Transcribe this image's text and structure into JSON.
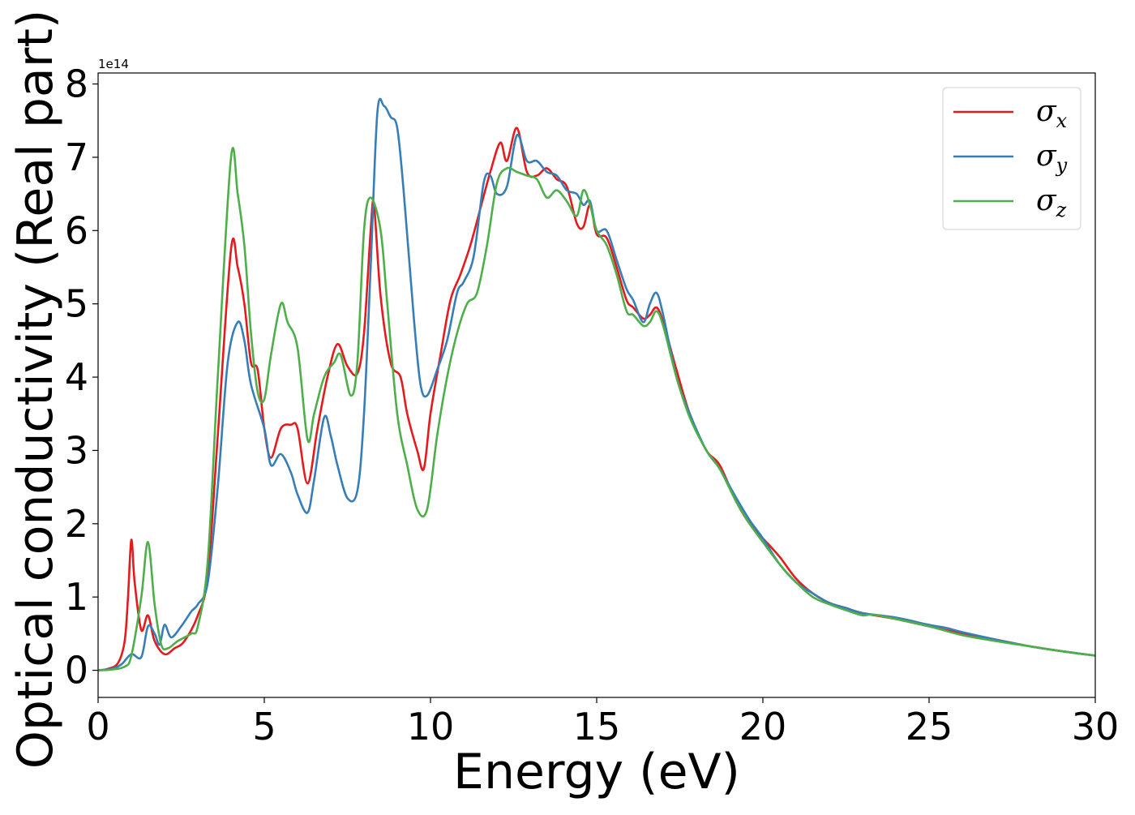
{
  "chart_data": {
    "type": "line",
    "title": "",
    "xlabel": "Energy (eV)",
    "ylabel": "Optical conductivity (Real part)",
    "y_offset_label": "1e14",
    "xlim": [
      0,
      30
    ],
    "ylim": [
      -0.37,
      8.15
    ],
    "xticks": [
      0,
      5,
      10,
      15,
      20,
      25,
      30
    ],
    "yticks": [
      0,
      1,
      2,
      3,
      4,
      5,
      6,
      7,
      8
    ],
    "grid": false,
    "legend_position": "top-right",
    "series": [
      {
        "name": "σx",
        "label_base": "σ",
        "label_sub": "x",
        "color": "#e41a1c",
        "points": [
          [
            0,
            0
          ],
          [
            0.3,
            0.02
          ],
          [
            0.6,
            0.1
          ],
          [
            0.8,
            0.4
          ],
          [
            0.9,
            1.0
          ],
          [
            1.0,
            1.78
          ],
          [
            1.1,
            1.2
          ],
          [
            1.3,
            0.55
          ],
          [
            1.5,
            0.75
          ],
          [
            1.7,
            0.4
          ],
          [
            2.0,
            0.22
          ],
          [
            2.3,
            0.3
          ],
          [
            2.6,
            0.4
          ],
          [
            3.0,
            0.75
          ],
          [
            3.3,
            1.3
          ],
          [
            3.6,
            3.2
          ],
          [
            4.0,
            5.75
          ],
          [
            4.2,
            5.5
          ],
          [
            4.4,
            5.0
          ],
          [
            4.6,
            4.2
          ],
          [
            4.8,
            4.1
          ],
          [
            5.0,
            3.3
          ],
          [
            5.2,
            2.9
          ],
          [
            5.5,
            3.3
          ],
          [
            5.8,
            3.35
          ],
          [
            6.0,
            3.3
          ],
          [
            6.3,
            2.55
          ],
          [
            6.6,
            3.3
          ],
          [
            6.9,
            4.0
          ],
          [
            7.2,
            4.45
          ],
          [
            7.5,
            4.15
          ],
          [
            7.8,
            4.05
          ],
          [
            8.0,
            4.6
          ],
          [
            8.2,
            6.0
          ],
          [
            8.3,
            6.35
          ],
          [
            8.5,
            5.1
          ],
          [
            8.8,
            4.2
          ],
          [
            9.1,
            4.0
          ],
          [
            9.3,
            3.5
          ],
          [
            9.6,
            3.0
          ],
          [
            9.8,
            2.75
          ],
          [
            10.0,
            3.5
          ],
          [
            10.3,
            4.3
          ],
          [
            10.6,
            5.05
          ],
          [
            10.9,
            5.4
          ],
          [
            11.2,
            5.8
          ],
          [
            11.5,
            6.3
          ],
          [
            11.8,
            6.8
          ],
          [
            12.1,
            7.2
          ],
          [
            12.3,
            6.95
          ],
          [
            12.6,
            7.4
          ],
          [
            12.9,
            6.8
          ],
          [
            13.2,
            6.75
          ],
          [
            13.5,
            6.85
          ],
          [
            13.8,
            6.7
          ],
          [
            14.1,
            6.6
          ],
          [
            14.4,
            6.1
          ],
          [
            14.6,
            6.05
          ],
          [
            14.8,
            6.35
          ],
          [
            15.0,
            5.95
          ],
          [
            15.3,
            5.9
          ],
          [
            15.6,
            5.5
          ],
          [
            15.9,
            5.05
          ],
          [
            16.1,
            4.95
          ],
          [
            16.4,
            4.8
          ],
          [
            16.6,
            4.85
          ],
          [
            16.8,
            4.95
          ],
          [
            17.0,
            4.75
          ],
          [
            17.4,
            4.1
          ],
          [
            17.8,
            3.5
          ],
          [
            18.3,
            3.0
          ],
          [
            18.7,
            2.8
          ],
          [
            19.2,
            2.3
          ],
          [
            19.6,
            2.0
          ],
          [
            20.0,
            1.8
          ],
          [
            20.5,
            1.55
          ],
          [
            21.0,
            1.25
          ],
          [
            21.5,
            1.05
          ],
          [
            22.0,
            0.92
          ],
          [
            22.5,
            0.85
          ],
          [
            23.0,
            0.78
          ],
          [
            24.0,
            0.7
          ],
          [
            25.0,
            0.6
          ],
          [
            26.0,
            0.5
          ],
          [
            27.0,
            0.42
          ],
          [
            28.0,
            0.33
          ],
          [
            29.0,
            0.26
          ],
          [
            30.0,
            0.2
          ]
        ]
      },
      {
        "name": "σy",
        "label_base": "σ",
        "label_sub": "y",
        "color": "#377eb8",
        "points": [
          [
            0,
            0
          ],
          [
            0.4,
            0.02
          ],
          [
            0.7,
            0.08
          ],
          [
            1.0,
            0.22
          ],
          [
            1.3,
            0.18
          ],
          [
            1.5,
            0.6
          ],
          [
            1.7,
            0.5
          ],
          [
            1.85,
            0.35
          ],
          [
            2.0,
            0.62
          ],
          [
            2.2,
            0.45
          ],
          [
            2.5,
            0.6
          ],
          [
            2.8,
            0.8
          ],
          [
            3.0,
            0.9
          ],
          [
            3.3,
            1.2
          ],
          [
            3.6,
            2.5
          ],
          [
            3.9,
            4.2
          ],
          [
            4.2,
            4.75
          ],
          [
            4.4,
            4.5
          ],
          [
            4.6,
            3.9
          ],
          [
            5.0,
            3.3
          ],
          [
            5.2,
            2.8
          ],
          [
            5.5,
            2.95
          ],
          [
            5.8,
            2.7
          ],
          [
            6.0,
            2.4
          ],
          [
            6.3,
            2.15
          ],
          [
            6.5,
            2.6
          ],
          [
            6.8,
            3.45
          ],
          [
            7.0,
            3.2
          ],
          [
            7.2,
            2.8
          ],
          [
            7.5,
            2.35
          ],
          [
            7.8,
            2.45
          ],
          [
            8.0,
            3.5
          ],
          [
            8.2,
            5.5
          ],
          [
            8.4,
            7.6
          ],
          [
            8.6,
            7.7
          ],
          [
            8.8,
            7.55
          ],
          [
            9.0,
            7.4
          ],
          [
            9.2,
            6.5
          ],
          [
            9.5,
            4.8
          ],
          [
            9.7,
            3.9
          ],
          [
            9.9,
            3.75
          ],
          [
            10.2,
            4.1
          ],
          [
            10.5,
            4.5
          ],
          [
            10.8,
            5.15
          ],
          [
            11.0,
            5.3
          ],
          [
            11.3,
            5.65
          ],
          [
            11.6,
            6.65
          ],
          [
            11.8,
            6.75
          ],
          [
            12.0,
            6.5
          ],
          [
            12.3,
            6.6
          ],
          [
            12.6,
            7.3
          ],
          [
            12.9,
            6.95
          ],
          [
            13.2,
            6.95
          ],
          [
            13.5,
            6.8
          ],
          [
            13.8,
            6.75
          ],
          [
            14.1,
            6.55
          ],
          [
            14.4,
            6.5
          ],
          [
            14.6,
            6.35
          ],
          [
            14.8,
            6.4
          ],
          [
            15.0,
            6.0
          ],
          [
            15.3,
            6.0
          ],
          [
            15.6,
            5.6
          ],
          [
            15.9,
            5.2
          ],
          [
            16.1,
            5.05
          ],
          [
            16.4,
            4.75
          ],
          [
            16.6,
            5.0
          ],
          [
            16.8,
            5.15
          ],
          [
            17.0,
            4.85
          ],
          [
            17.4,
            4.0
          ],
          [
            17.8,
            3.5
          ],
          [
            18.3,
            3.0
          ],
          [
            18.7,
            2.75
          ],
          [
            19.2,
            2.35
          ],
          [
            19.6,
            2.05
          ],
          [
            20.0,
            1.8
          ],
          [
            20.5,
            1.45
          ],
          [
            21.0,
            1.2
          ],
          [
            21.5,
            1.05
          ],
          [
            22.0,
            0.92
          ],
          [
            22.5,
            0.85
          ],
          [
            23.0,
            0.78
          ],
          [
            24.0,
            0.72
          ],
          [
            25.0,
            0.62
          ],
          [
            25.5,
            0.58
          ],
          [
            26.0,
            0.52
          ],
          [
            27.0,
            0.42
          ],
          [
            28.0,
            0.33
          ],
          [
            29.0,
            0.26
          ],
          [
            30.0,
            0.2
          ]
        ]
      },
      {
        "name": "σz",
        "label_base": "σ",
        "label_sub": "z",
        "color": "#4daf4a",
        "points": [
          [
            0,
            0
          ],
          [
            0.4,
            0.01
          ],
          [
            0.8,
            0.05
          ],
          [
            1.0,
            0.2
          ],
          [
            1.3,
            1.0
          ],
          [
            1.5,
            1.75
          ],
          [
            1.7,
            0.9
          ],
          [
            1.9,
            0.35
          ],
          [
            2.1,
            0.3
          ],
          [
            2.4,
            0.4
          ],
          [
            2.8,
            0.5
          ],
          [
            3.0,
            0.6
          ],
          [
            3.3,
            1.5
          ],
          [
            3.6,
            4.0
          ],
          [
            4.0,
            7.0
          ],
          [
            4.2,
            6.5
          ],
          [
            4.4,
            5.8
          ],
          [
            4.6,
            4.6
          ],
          [
            4.8,
            3.8
          ],
          [
            5.0,
            3.7
          ],
          [
            5.2,
            4.3
          ],
          [
            5.5,
            5.0
          ],
          [
            5.7,
            4.75
          ],
          [
            6.0,
            4.4
          ],
          [
            6.3,
            3.15
          ],
          [
            6.5,
            3.5
          ],
          [
            6.8,
            4.0
          ],
          [
            7.1,
            4.2
          ],
          [
            7.3,
            4.3
          ],
          [
            7.6,
            3.75
          ],
          [
            7.8,
            4.2
          ],
          [
            8.0,
            6.0
          ],
          [
            8.2,
            6.45
          ],
          [
            8.5,
            6.0
          ],
          [
            8.7,
            5.0
          ],
          [
            9.0,
            3.5
          ],
          [
            9.3,
            2.8
          ],
          [
            9.6,
            2.2
          ],
          [
            9.9,
            2.2
          ],
          [
            10.2,
            3.2
          ],
          [
            10.5,
            4.0
          ],
          [
            10.8,
            4.6
          ],
          [
            11.1,
            5.0
          ],
          [
            11.4,
            5.15
          ],
          [
            11.7,
            5.8
          ],
          [
            12.0,
            6.65
          ],
          [
            12.3,
            6.85
          ],
          [
            12.6,
            6.8
          ],
          [
            12.9,
            6.75
          ],
          [
            13.2,
            6.7
          ],
          [
            13.5,
            6.45
          ],
          [
            13.8,
            6.55
          ],
          [
            14.1,
            6.4
          ],
          [
            14.4,
            6.2
          ],
          [
            14.6,
            6.55
          ],
          [
            14.8,
            6.35
          ],
          [
            15.0,
            6.0
          ],
          [
            15.3,
            5.8
          ],
          [
            15.6,
            5.4
          ],
          [
            15.9,
            4.9
          ],
          [
            16.1,
            4.85
          ],
          [
            16.4,
            4.7
          ],
          [
            16.6,
            4.75
          ],
          [
            16.8,
            4.9
          ],
          [
            17.0,
            4.7
          ],
          [
            17.4,
            4.0
          ],
          [
            17.8,
            3.45
          ],
          [
            18.3,
            3.0
          ],
          [
            18.7,
            2.75
          ],
          [
            19.2,
            2.3
          ],
          [
            19.6,
            2.0
          ],
          [
            20.0,
            1.75
          ],
          [
            20.5,
            1.45
          ],
          [
            21.0,
            1.2
          ],
          [
            21.5,
            1.0
          ],
          [
            22.0,
            0.9
          ],
          [
            22.5,
            0.82
          ],
          [
            23.0,
            0.75
          ],
          [
            23.3,
            0.76
          ],
          [
            24.0,
            0.7
          ],
          [
            25.0,
            0.6
          ],
          [
            26.0,
            0.48
          ],
          [
            27.0,
            0.4
          ],
          [
            28.0,
            0.33
          ],
          [
            29.0,
            0.26
          ],
          [
            30.0,
            0.2
          ]
        ]
      }
    ]
  }
}
